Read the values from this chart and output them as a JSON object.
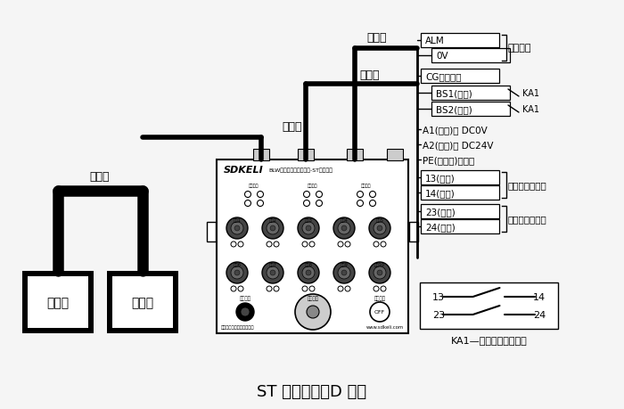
{
  "bg_color": "#f5f5f5",
  "title": "ST 型控制器（D 型）",
  "title_fontsize": 13,
  "fig_width": 7.0,
  "fig_height": 4.6,
  "labels": {
    "transmitter": "发射器",
    "receiver": "接收器",
    "signal_line": "信号线",
    "power_line": "电源线",
    "transmission_top": "传输线",
    "transmission_mid": "传输线",
    "alarm": "接报警器",
    "fast_ctrl1": "接快下控制输出",
    "fast_ctrl2": "接快下控制输出",
    "ka1_label": "KA1—折弯机慢下继电器",
    "brand": "SDKELI",
    "device_name": "BLW型重光安全保护装置-ST型控制器",
    "company": "山东新力光电技术有限公司",
    "website": "www.sdkeli.com"
  }
}
